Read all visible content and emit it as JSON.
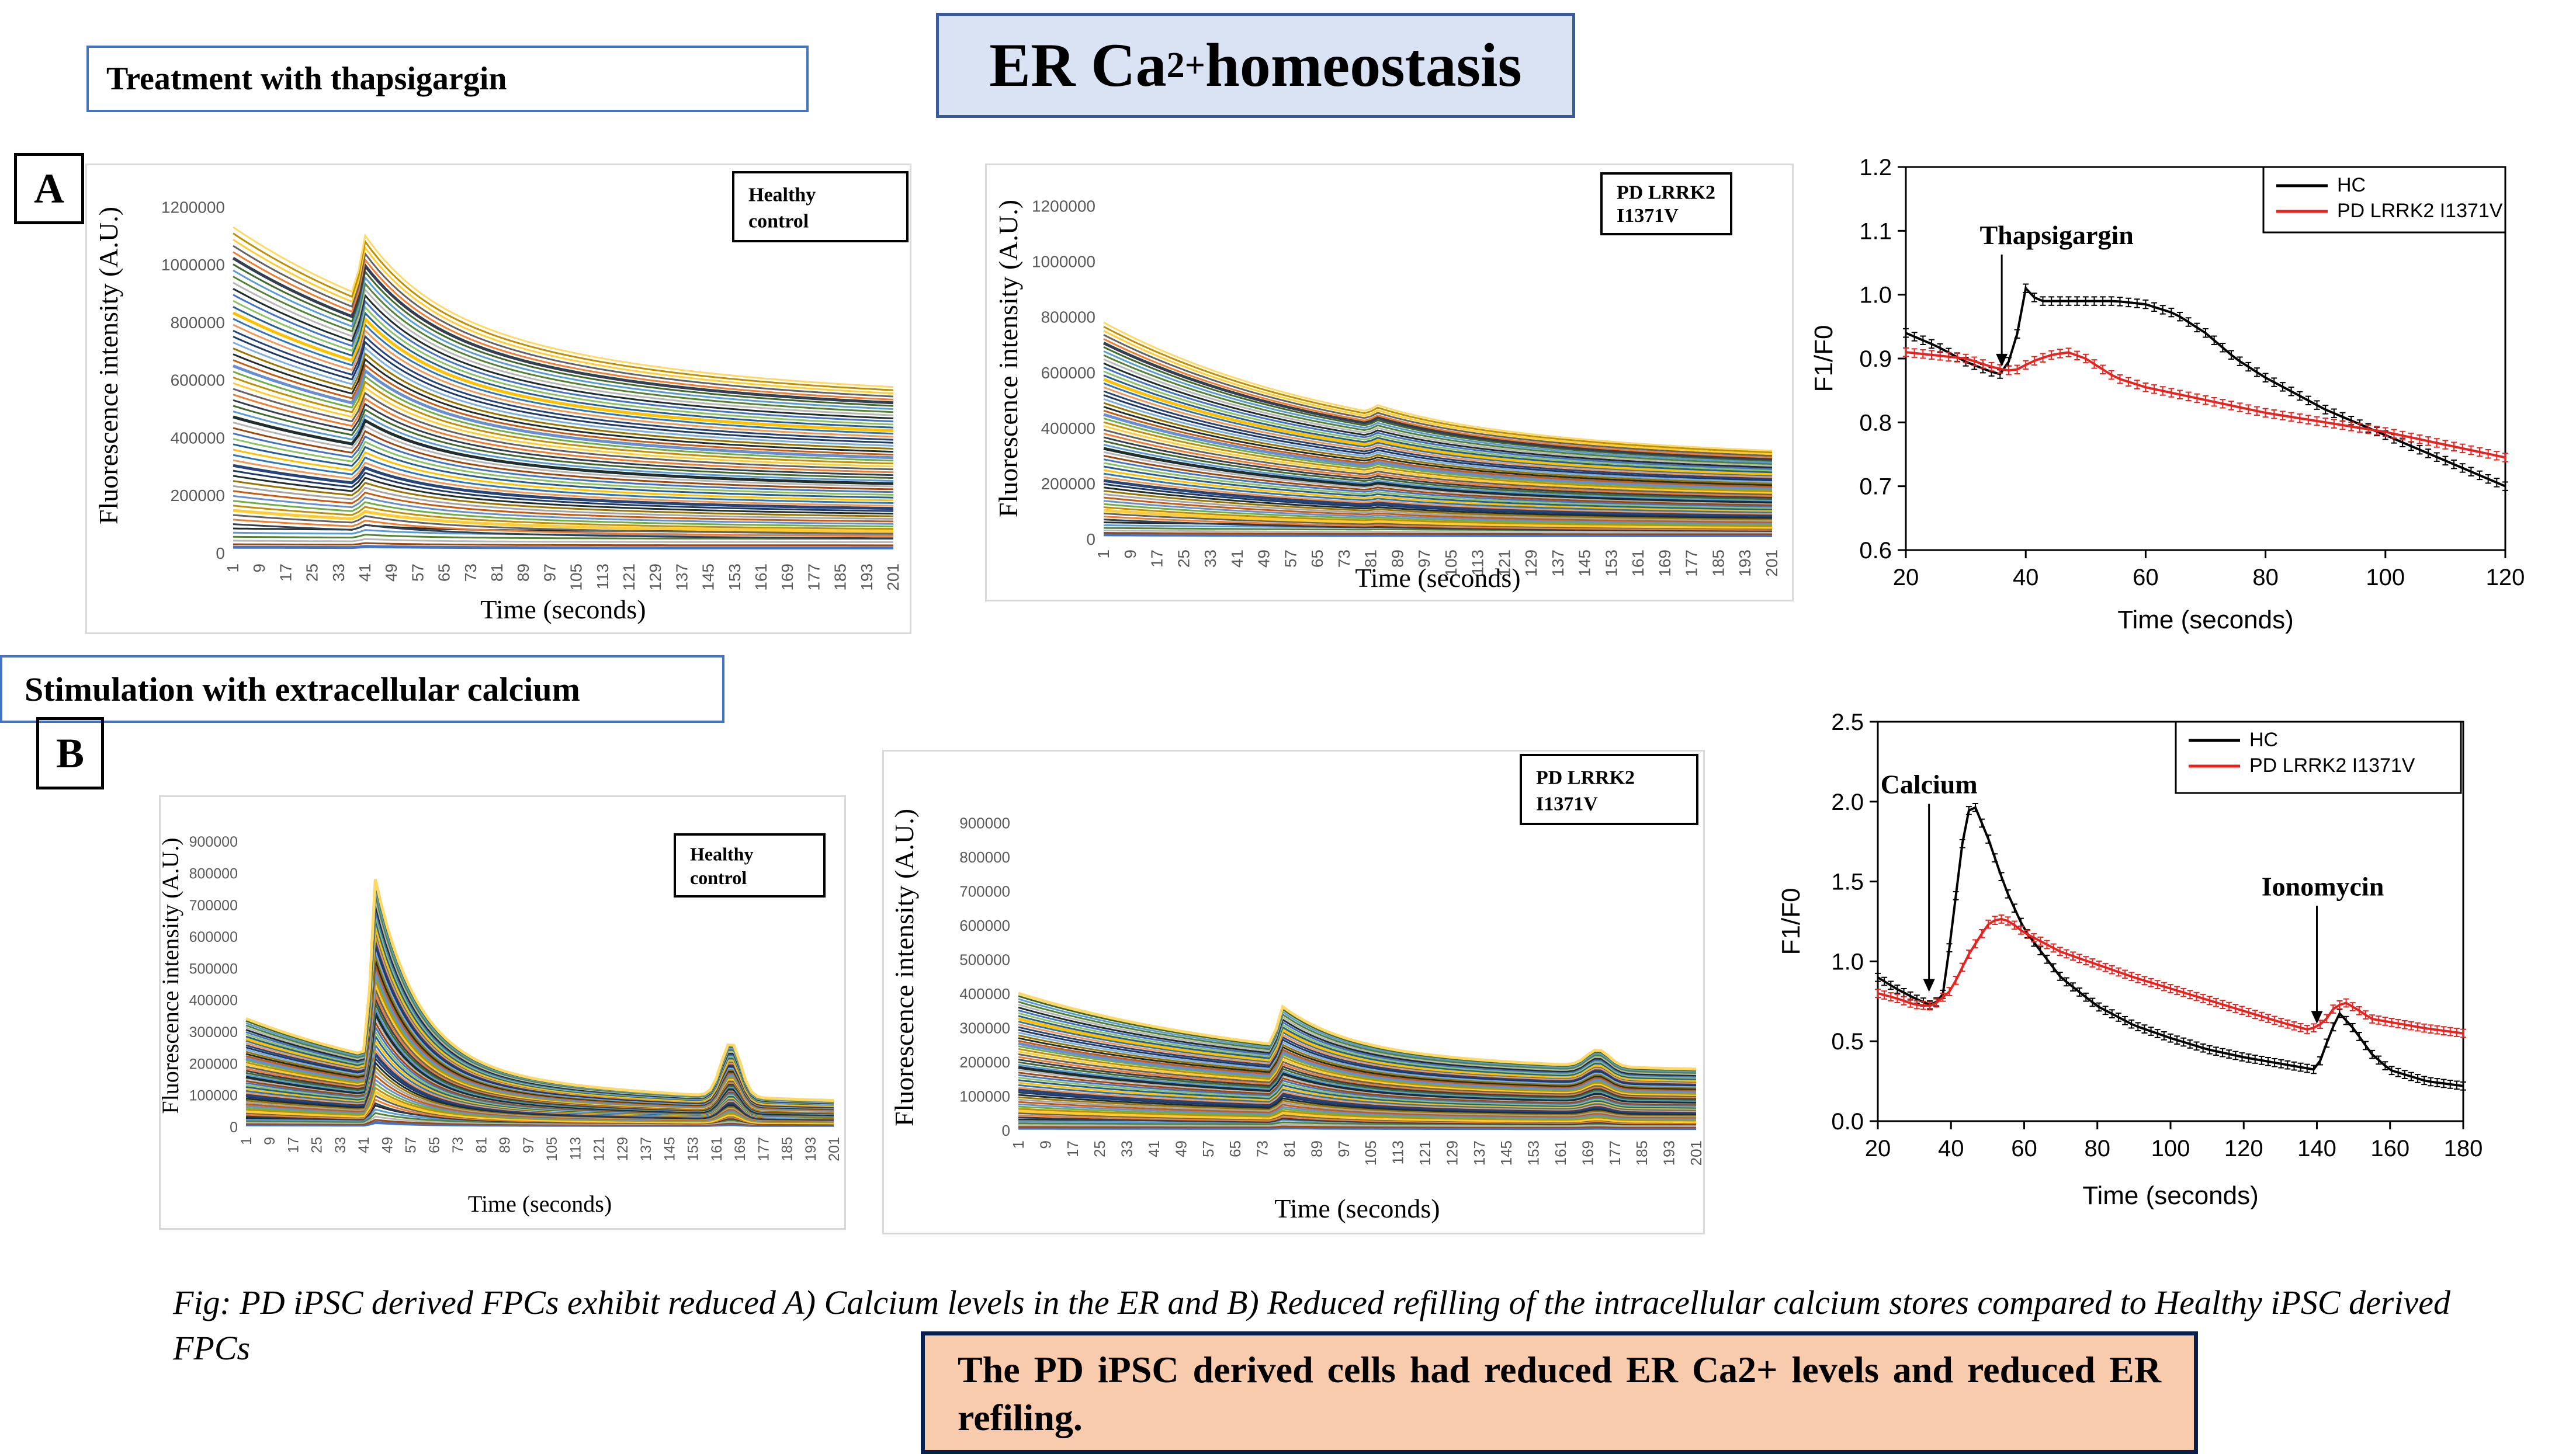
{
  "title": {
    "main": "ER Ca",
    "sup": "2+",
    "rest": " homeostasis"
  },
  "section_a": {
    "label": "A",
    "heading": "Treatment with thapsigargin"
  },
  "section_b": {
    "label": "B",
    "heading": "Stimulation with extracellular calcium"
  },
  "caption": "Fig: PD iPSC derived FPCs exhibit reduced A) Calcium levels in the ER and B) Reduced refilling of the intracellular calcium stores compared to Healthy iPSC derived FPCs",
  "conclusion": "The PD iPSC derived cells had reduced ER Ca2+ levels and reduced ER refiling.",
  "chart_data": [
    {
      "id": "a-hc",
      "type": "line",
      "legend_box": [
        "Healthy",
        "control"
      ],
      "ylabel": "Fluorescence intensity (A.U.)",
      "xlabel": "Time (seconds)",
      "yticks": [
        0,
        200000,
        400000,
        600000,
        800000,
        1000000,
        1200000
      ],
      "ylim": [
        0,
        1300000
      ],
      "xticks": [
        1,
        9,
        17,
        25,
        33,
        41,
        49,
        57,
        65,
        73,
        81,
        89,
        97,
        105,
        113,
        121,
        129,
        137,
        145,
        153,
        161,
        169,
        177,
        185,
        193,
        201
      ],
      "trace_count": 60,
      "trace_start_range": [
        20000,
        1130000
      ],
      "trace_end_fraction": 0.47,
      "event_time": 40,
      "event_bump_fraction": 0.2
    },
    {
      "id": "a-pd",
      "type": "line",
      "legend_box": [
        "PD LRRK2",
        "I1371V"
      ],
      "ylabel": "Fluorescence intensity (A.U.)",
      "xlabel": "Time (seconds)",
      "yticks": [
        0,
        200000,
        400000,
        600000,
        800000,
        1000000,
        1200000
      ],
      "ylim": [
        0,
        1300000
      ],
      "xticks": [
        1,
        9,
        17,
        25,
        33,
        41,
        49,
        57,
        65,
        73,
        81,
        89,
        97,
        105,
        113,
        121,
        129,
        137,
        145,
        153,
        161,
        169,
        177,
        185,
        193,
        201
      ],
      "trace_count": 60,
      "trace_start_range": [
        15000,
        780000
      ],
      "trace_end_fraction": 0.36,
      "event_time": 82,
      "event_bump_fraction": 0.04
    },
    {
      "id": "a-summary",
      "type": "line",
      "xlabel": "Time (seconds)",
      "ylabel": "F1/F0",
      "xlim": [
        20,
        120
      ],
      "ylim": [
        0.6,
        1.2
      ],
      "xticks": [
        20,
        40,
        60,
        80,
        100,
        120
      ],
      "yticks": [
        "0.6",
        "0.7",
        "0.8",
        "0.9",
        "1.0",
        "1.1",
        "1.2"
      ],
      "legend": "top-right",
      "annotation": {
        "text": "Thapsigargin",
        "x": 36,
        "y": 0.88
      },
      "series": [
        {
          "name": "HC",
          "color": "#000000",
          "x": [
            20,
            25,
            30,
            34,
            36,
            38,
            40,
            42,
            46,
            50,
            55,
            60,
            65,
            70,
            75,
            80,
            85,
            90,
            95,
            100,
            105,
            110,
            115,
            120
          ],
          "y": [
            0.94,
            0.92,
            0.895,
            0.88,
            0.875,
            0.91,
            1.01,
            0.99,
            0.99,
            0.99,
            0.99,
            0.985,
            0.97,
            0.94,
            0.9,
            0.87,
            0.845,
            0.82,
            0.8,
            0.78,
            0.76,
            0.74,
            0.72,
            0.7
          ]
        },
        {
          "name": "PD LRRK2 I1371V",
          "color": "#e8231f",
          "x": [
            20,
            25,
            30,
            35,
            38,
            41,
            44,
            47,
            50,
            55,
            60,
            70,
            80,
            90,
            100,
            110,
            120
          ],
          "y": [
            0.91,
            0.905,
            0.9,
            0.885,
            0.88,
            0.895,
            0.905,
            0.91,
            0.9,
            0.87,
            0.855,
            0.835,
            0.815,
            0.8,
            0.785,
            0.765,
            0.745
          ]
        }
      ]
    },
    {
      "id": "b-hc",
      "type": "line",
      "legend_box": [
        "Healthy",
        "control"
      ],
      "ylabel": "Fluorescence intensity (A.U.)",
      "xlabel": "Time (seconds)",
      "yticks": [
        0,
        100000,
        200000,
        300000,
        400000,
        500000,
        600000,
        700000,
        800000,
        900000
      ],
      "ylim": [
        0,
        950000
      ],
      "xticks": [
        1,
        9,
        17,
        25,
        33,
        41,
        49,
        57,
        65,
        73,
        81,
        89,
        97,
        105,
        113,
        121,
        129,
        137,
        145,
        153,
        161,
        169,
        177,
        185,
        193,
        201
      ],
      "trace_count": 55,
      "trace_start_range": [
        5000,
        340000
      ],
      "trace_end_fraction": 0.18,
      "event_time": 45,
      "event_peak": [
        815000,
        0.75
      ],
      "event2_time": 166,
      "event2_bump_fraction": 0.5
    },
    {
      "id": "b-pd",
      "type": "line",
      "legend_box": [
        "PD LRRK2",
        "I1371V"
      ],
      "ylabel": "Fluorescence intensity (A.U.)",
      "xlabel": "Time (seconds)",
      "yticks": [
        0,
        100000,
        200000,
        300000,
        400000,
        500000,
        600000,
        700000,
        800000,
        900000
      ],
      "ylim": [
        0,
        950000
      ],
      "xticks": [
        1,
        9,
        17,
        25,
        33,
        41,
        49,
        57,
        65,
        73,
        81,
        89,
        97,
        105,
        113,
        121,
        129,
        137,
        145,
        153,
        161,
        169,
        177,
        185,
        193,
        201
      ],
      "trace_count": 55,
      "trace_start_range": [
        5000,
        400000
      ],
      "trace_end_fraction": 0.4,
      "event_time": 78,
      "event_bump_fraction": 0.3,
      "event2_time": 172,
      "event2_bump_fraction": 0.12
    },
    {
      "id": "b-summary",
      "type": "line",
      "xlabel": "Time (seconds)",
      "ylabel": "F1/F0",
      "xlim": [
        20,
        180
      ],
      "ylim": [
        0.0,
        2.5
      ],
      "xticks": [
        20,
        40,
        60,
        80,
        100,
        120,
        140,
        160,
        180
      ],
      "yticks": [
        "0.0",
        "0.5",
        "1.0",
        "1.5",
        "2.0",
        "2.5"
      ],
      "legend": "top-right",
      "annotations": [
        {
          "text": "Calcium",
          "x": 34,
          "y": 0.78
        },
        {
          "text": "Ionomycin",
          "x": 140,
          "y": 0.58
        }
      ],
      "series": [
        {
          "name": "HC",
          "color": "#000000",
          "x": [
            20,
            25,
            30,
            35,
            38,
            41,
            44,
            46,
            50,
            55,
            60,
            70,
            80,
            90,
            100,
            110,
            120,
            130,
            140,
            142,
            146,
            150,
            155,
            160,
            170,
            180
          ],
          "y": [
            0.9,
            0.83,
            0.77,
            0.72,
            0.8,
            1.35,
            1.9,
            2.0,
            1.78,
            1.45,
            1.2,
            0.9,
            0.72,
            0.6,
            0.52,
            0.45,
            0.4,
            0.36,
            0.32,
            0.45,
            0.68,
            0.58,
            0.42,
            0.32,
            0.25,
            0.22
          ]
        },
        {
          "name": "PD LRRK2 I1371V",
          "color": "#e8231f",
          "x": [
            20,
            25,
            30,
            35,
            40,
            45,
            50,
            53,
            56,
            60,
            70,
            80,
            90,
            100,
            110,
            120,
            130,
            138,
            142,
            145,
            148,
            151,
            155,
            160,
            170,
            180
          ],
          "y": [
            0.8,
            0.77,
            0.73,
            0.72,
            0.82,
            1.05,
            1.23,
            1.27,
            1.25,
            1.18,
            1.06,
            0.98,
            0.9,
            0.83,
            0.76,
            0.69,
            0.62,
            0.57,
            0.62,
            0.72,
            0.74,
            0.7,
            0.64,
            0.62,
            0.58,
            0.55
          ]
        }
      ]
    }
  ]
}
